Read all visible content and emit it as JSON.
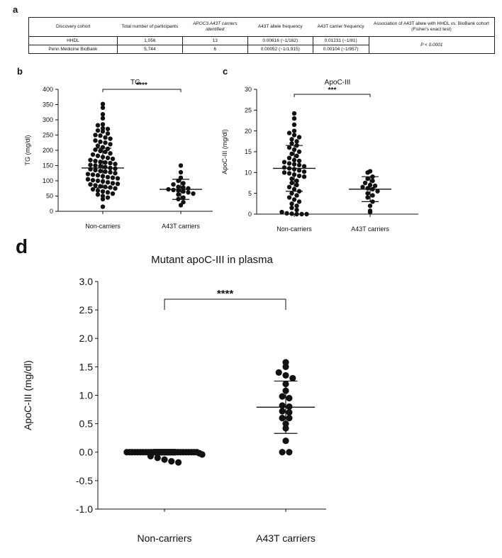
{
  "panel_letters": {
    "a": "a",
    "b": "b",
    "c": "c",
    "d": "d"
  },
  "table": {
    "headers": [
      "Discovery cohort",
      "Total number of participants",
      "APOC3 A43T carriers identified",
      "A43T allele frequency",
      "A43T carrier frequency",
      "Association of A43T allele with HHDL vs. BioBank cohort (Fisher's exact test)"
    ],
    "rows": [
      [
        "HHDL",
        "1,056",
        "13",
        "0.00616 (~1/162)",
        "0.01231 (~1/81)"
      ],
      [
        "Penn Medicine BioBank",
        "5,744",
        "6",
        "0.00052 (~1/1,915)",
        "0.00104 (~1/957)"
      ]
    ],
    "association": "P < 0.0001"
  },
  "chart_data": [
    {
      "type": "scatter",
      "panel": "b",
      "title": "TG",
      "ylabel": "TG (mg/dl)",
      "ylim": [
        0,
        400
      ],
      "yticks": [
        0,
        50,
        100,
        150,
        200,
        250,
        300,
        350,
        400
      ],
      "categories": [
        "Non-carriers",
        "A43T carriers"
      ],
      "significance": "****",
      "groups": [
        {
          "name": "Non-carriers",
          "mean": 142,
          "sd": 65,
          "values": [
            352,
            340,
            318,
            305,
            285,
            282,
            272,
            270,
            265,
            262,
            255,
            250,
            248,
            242,
            238,
            232,
            228,
            225,
            220,
            215,
            210,
            205,
            202,
            198,
            195,
            190,
            186,
            182,
            178,
            175,
            172,
            168,
            165,
            162,
            160,
            158,
            155,
            152,
            150,
            148,
            145,
            142,
            140,
            138,
            135,
            132,
            130,
            128,
            125,
            122,
            120,
            118,
            115,
            112,
            110,
            108,
            105,
            102,
            100,
            98,
            95,
            92,
            90,
            88,
            85,
            82,
            80,
            78,
            75,
            72,
            68,
            65,
            62,
            58,
            55,
            50,
            45,
            40,
            15
          ]
        },
        {
          "name": "A43T carriers",
          "mean": 72,
          "sd": 33,
          "values": [
            150,
            128,
            110,
            100,
            92,
            88,
            80,
            78,
            75,
            72,
            70,
            68,
            65,
            62,
            58,
            55,
            45,
            40,
            30,
            20
          ]
        }
      ]
    },
    {
      "type": "scatter",
      "panel": "c",
      "title": "ApoC-III",
      "ylabel": "ApoC-III (mg/dl)",
      "ylim": [
        0,
        30
      ],
      "yticks": [
        0,
        5,
        10,
        15,
        20,
        25,
        30
      ],
      "categories": [
        "Non-carriers",
        "A43T carriers"
      ],
      "significance": "***",
      "groups": [
        {
          "name": "Non-carriers",
          "mean": 11,
          "sd": 5.5,
          "values": [
            24.2,
            23.0,
            21.5,
            20.0,
            19.5,
            19.0,
            18.5,
            18.0,
            17.5,
            17.0,
            16.5,
            16.0,
            15.5,
            15.0,
            14.5,
            14.0,
            13.5,
            13.0,
            12.8,
            12.5,
            12.2,
            12.0,
            11.8,
            11.5,
            11.2,
            11.0,
            10.8,
            10.5,
            10.2,
            10.0,
            9.8,
            9.5,
            9.2,
            9.0,
            8.5,
            8.0,
            7.5,
            7.0,
            6.5,
            6.0,
            5.5,
            5.0,
            4.5,
            4.0,
            3.5,
            3.0,
            2.5,
            2.0,
            1.5,
            1.0,
            0.5,
            0.2,
            0.1,
            0.0,
            0.0,
            0.0
          ]
        },
        {
          "name": "A43T carriers",
          "mean": 6,
          "sd": 3,
          "values": [
            10.3,
            10.0,
            9.0,
            8.5,
            8.0,
            7.5,
            7.0,
            6.8,
            6.5,
            6.2,
            6.0,
            5.5,
            5.0,
            4.5,
            4.0,
            3.0,
            2.0,
            0.8,
            0.5
          ]
        }
      ]
    },
    {
      "type": "scatter",
      "panel": "d",
      "title": "Mutant apoC-III in plasma",
      "ylabel": "ApoC-III (mg/dl)",
      "ylim": [
        -1.0,
        3.0
      ],
      "yticks": [
        -1.0,
        -0.5,
        0.0,
        0.5,
        1.0,
        1.5,
        2.0,
        2.5,
        3.0
      ],
      "categories": [
        "Non-carriers",
        "A43T carriers"
      ],
      "significance": "****",
      "groups": [
        {
          "name": "Non-carriers",
          "mean": 0.0,
          "sd": 0.05,
          "values": [
            0.0,
            0.0,
            0.0,
            0.0,
            0.0,
            0.0,
            0.0,
            0.0,
            0.0,
            0.0,
            0.0,
            0.0,
            0.0,
            0.0,
            0.0,
            0.0,
            0.0,
            0.0,
            0.0,
            0.0,
            0.0,
            0.0,
            0.0,
            0.0,
            0.0,
            0.0,
            0.0,
            -0.02,
            -0.04,
            -0.07,
            -0.1,
            -0.13,
            -0.16,
            -0.18
          ]
        },
        {
          "name": "A43T carriers",
          "mean": 0.79,
          "sd": 0.46,
          "values": [
            1.58,
            1.5,
            1.4,
            1.35,
            1.3,
            1.2,
            1.08,
            0.98,
            0.95,
            0.82,
            0.8,
            0.72,
            0.7,
            0.6,
            0.6,
            0.5,
            0.42,
            0.2,
            0.0,
            0.0
          ]
        }
      ]
    }
  ]
}
